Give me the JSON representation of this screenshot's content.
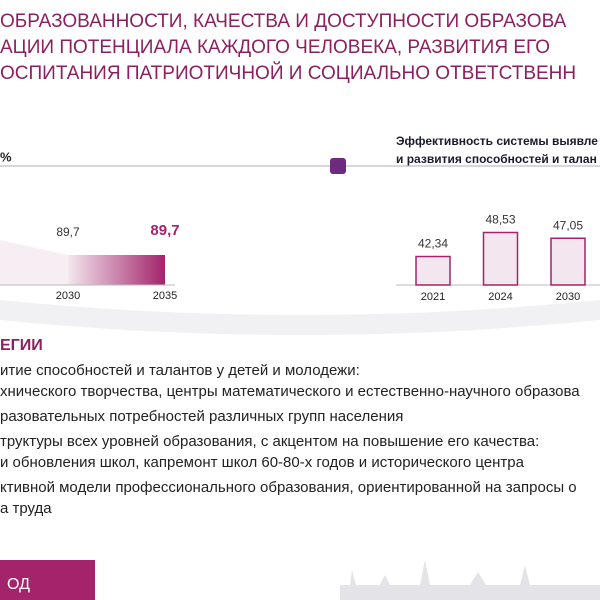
{
  "header": {
    "lines": [
      "ОБРАЗОВАННОСТИ, КАЧЕСТВА И ДОСТУПНОСТИ ОБРАЗОВА",
      "АЦИИ ПОТЕНЦИАЛА КАЖДОГО ЧЕЛОВЕКА, РАЗВИТИЯ ЕГО",
      "ОСПИТАНИЯ ПАТРИОТИЧНОЙ И СОЦИАЛЬНО ОТВЕТСТВЕНН"
    ]
  },
  "left_chart": {
    "type": "area",
    "unit": "%",
    "categories": [
      "2030",
      "2035"
    ],
    "values": [
      89.7,
      89.7
    ],
    "value_labels": [
      "89,7",
      "89,7"
    ],
    "color": "#a3246b"
  },
  "right_chart": {
    "type": "bar",
    "title_lines": [
      "Эффективность системы выявле",
      "и развития способностей и талан"
    ],
    "categories": [
      "2021",
      "2024",
      "2030"
    ],
    "values": [
      42.34,
      48.53,
      47.05
    ],
    "value_labels": [
      "42,34",
      "48,53",
      "47,05"
    ],
    "ylim": [
      35,
      50
    ],
    "color": "#a3246b"
  },
  "section": {
    "title": "ЕГИИ",
    "items": [
      [
        "итие способностей и талантов у детей и молодежи:",
        "хнического творчества, центры математического и естественно-научного образова"
      ],
      [
        "разовательных потребностей различных групп населения"
      ],
      [
        "труктуры всех уровней образования, с акцентом на повышение его качества:",
        "и обновления школ, капремонт школ 60-80-х годов и исторического центра"
      ],
      [
        "ктивной модели профессионального образования, ориентированной на запросы о",
        "а труда"
      ]
    ]
  },
  "footer": {
    "text": "ОД"
  }
}
